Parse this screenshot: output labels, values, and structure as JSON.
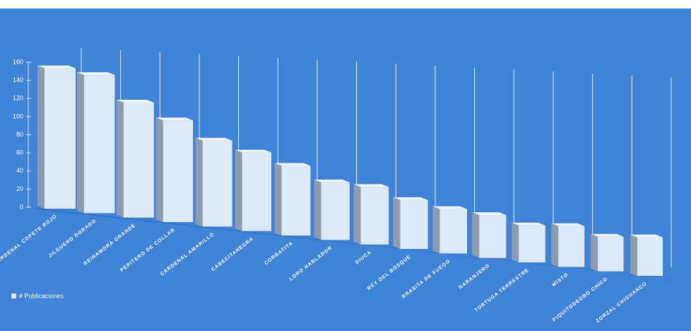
{
  "chart_data": {
    "type": "bar3d",
    "categories": [
      "CARDENAL COPETE ROJO",
      "JILGUERO DORADO",
      "REINAMORA GRANDE",
      "PEPITERO DE COLLAR",
      "CARDENAL AMARILLO",
      "CABECITANEGRA",
      "CORBATITA",
      "LORO HABLADOR",
      "DIUCA",
      "REY DEL BOSQUE",
      "BRASITA DE FUEGO",
      "NARANJERO",
      "TORTUGA TERRESTRE",
      "MISTO",
      "PIQUITODEORO CHICO",
      "ZORZAL CHIGUANCO"
    ],
    "series": [
      {
        "name": "# Publicaciones",
        "color": "#dce9f8",
        "values": [
          155,
          150,
          123,
          107,
          89,
          80,
          70,
          57,
          56,
          47,
          42,
          40,
          34,
          37,
          31,
          34
        ]
      }
    ],
    "ylim": [
      0,
      160
    ],
    "yticks": [
      0,
      20,
      40,
      60,
      80,
      100,
      120,
      140,
      160
    ],
    "grid": true
  }
}
